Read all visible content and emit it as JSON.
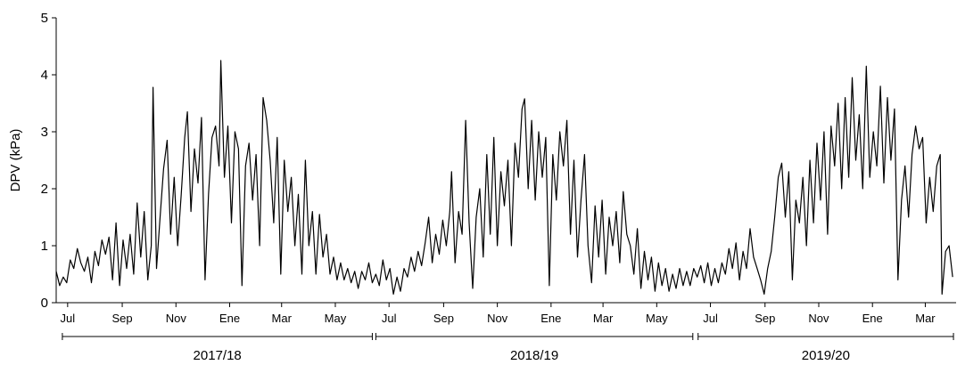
{
  "chart_data": {
    "type": "line",
    "ylabel": "DPV (kPa)",
    "ylim": [
      0,
      5
    ],
    "yticks": [
      0,
      1,
      2,
      3,
      4,
      5
    ],
    "xlim": [
      "2017-06-18",
      "2020-04-05"
    ],
    "grid": false,
    "months": [
      {
        "label": "Jul",
        "date": "2017-07-01"
      },
      {
        "label": "Sep",
        "date": "2017-09-01"
      },
      {
        "label": "Nov",
        "date": "2017-11-01"
      },
      {
        "label": "Ene",
        "date": "2018-01-01"
      },
      {
        "label": "Mar",
        "date": "2018-03-01"
      },
      {
        "label": "May",
        "date": "2018-05-01"
      },
      {
        "label": "Jul",
        "date": "2018-07-01"
      },
      {
        "label": "Sep",
        "date": "2018-09-01"
      },
      {
        "label": "Nov",
        "date": "2018-11-01"
      },
      {
        "label": "Ene",
        "date": "2019-01-01"
      },
      {
        "label": "Mar",
        "date": "2019-03-01"
      },
      {
        "label": "May",
        "date": "2019-05-01"
      },
      {
        "label": "Jul",
        "date": "2019-07-01"
      },
      {
        "label": "Sep",
        "date": "2019-09-01"
      },
      {
        "label": "Nov",
        "date": "2019-11-01"
      },
      {
        "label": "Ene",
        "date": "2020-01-01"
      },
      {
        "label": "Mar",
        "date": "2020-03-01"
      }
    ],
    "seasons": [
      {
        "label": "2017/18",
        "start": "2017-06-25",
        "end": "2018-06-12"
      },
      {
        "label": "2018/19",
        "start": "2018-06-16",
        "end": "2019-06-11"
      },
      {
        "label": "2019/20",
        "start": "2019-06-17",
        "end": "2020-04-02"
      }
    ],
    "series": [
      {
        "points": [
          [
            "2017-06-18",
            0.55
          ],
          [
            "2017-06-22",
            0.3
          ],
          [
            "2017-06-26",
            0.45
          ],
          [
            "2017-06-30",
            0.35
          ],
          [
            "2017-07-04",
            0.75
          ],
          [
            "2017-07-08",
            0.6
          ],
          [
            "2017-07-12",
            0.95
          ],
          [
            "2017-07-16",
            0.7
          ],
          [
            "2017-07-20",
            0.55
          ],
          [
            "2017-07-24",
            0.8
          ],
          [
            "2017-07-28",
            0.35
          ],
          [
            "2017-08-01",
            0.9
          ],
          [
            "2017-08-05",
            0.65
          ],
          [
            "2017-08-09",
            1.1
          ],
          [
            "2017-08-13",
            0.85
          ],
          [
            "2017-08-17",
            1.15
          ],
          [
            "2017-08-21",
            0.4
          ],
          [
            "2017-08-25",
            1.4
          ],
          [
            "2017-08-29",
            0.3
          ],
          [
            "2017-09-02",
            1.1
          ],
          [
            "2017-09-06",
            0.6
          ],
          [
            "2017-09-10",
            1.2
          ],
          [
            "2017-09-14",
            0.5
          ],
          [
            "2017-09-18",
            1.75
          ],
          [
            "2017-09-22",
            0.8
          ],
          [
            "2017-09-26",
            1.6
          ],
          [
            "2017-09-30",
            0.4
          ],
          [
            "2017-10-04",
            1.0
          ],
          [
            "2017-10-06",
            3.78
          ],
          [
            "2017-10-10",
            0.6
          ],
          [
            "2017-10-14",
            1.5
          ],
          [
            "2017-10-18",
            2.35
          ],
          [
            "2017-10-22",
            2.85
          ],
          [
            "2017-10-26",
            1.2
          ],
          [
            "2017-10-30",
            2.2
          ],
          [
            "2017-11-03",
            1.0
          ],
          [
            "2017-11-07",
            1.9
          ],
          [
            "2017-11-11",
            2.9
          ],
          [
            "2017-11-14",
            3.35
          ],
          [
            "2017-11-18",
            1.6
          ],
          [
            "2017-11-22",
            2.7
          ],
          [
            "2017-11-26",
            2.1
          ],
          [
            "2017-11-30",
            3.25
          ],
          [
            "2017-12-04",
            0.4
          ],
          [
            "2017-12-08",
            1.9
          ],
          [
            "2017-12-12",
            2.9
          ],
          [
            "2017-12-16",
            3.1
          ],
          [
            "2017-12-20",
            2.4
          ],
          [
            "2017-12-22",
            4.25
          ],
          [
            "2017-12-26",
            2.2
          ],
          [
            "2017-12-30",
            3.1
          ],
          [
            "2018-01-03",
            1.4
          ],
          [
            "2018-01-07",
            3.0
          ],
          [
            "2018-01-11",
            2.7
          ],
          [
            "2018-01-15",
            0.3
          ],
          [
            "2018-01-19",
            2.4
          ],
          [
            "2018-01-23",
            2.8
          ],
          [
            "2018-01-27",
            1.8
          ],
          [
            "2018-01-31",
            2.6
          ],
          [
            "2018-02-04",
            1.0
          ],
          [
            "2018-02-08",
            3.6
          ],
          [
            "2018-02-12",
            3.2
          ],
          [
            "2018-02-16",
            2.5
          ],
          [
            "2018-02-20",
            1.4
          ],
          [
            "2018-02-24",
            2.9
          ],
          [
            "2018-02-28",
            0.5
          ],
          [
            "2018-03-04",
            2.5
          ],
          [
            "2018-03-08",
            1.6
          ],
          [
            "2018-03-12",
            2.2
          ],
          [
            "2018-03-16",
            1.0
          ],
          [
            "2018-03-20",
            1.9
          ],
          [
            "2018-03-24",
            0.5
          ],
          [
            "2018-03-28",
            2.5
          ],
          [
            "2018-04-01",
            1.0
          ],
          [
            "2018-04-05",
            1.6
          ],
          [
            "2018-04-09",
            0.5
          ],
          [
            "2018-04-13",
            1.55
          ],
          [
            "2018-04-17",
            0.8
          ],
          [
            "2018-04-21",
            1.2
          ],
          [
            "2018-04-25",
            0.5
          ],
          [
            "2018-04-29",
            0.8
          ],
          [
            "2018-05-03",
            0.4
          ],
          [
            "2018-05-07",
            0.7
          ],
          [
            "2018-05-11",
            0.4
          ],
          [
            "2018-05-15",
            0.6
          ],
          [
            "2018-05-19",
            0.35
          ],
          [
            "2018-05-23",
            0.55
          ],
          [
            "2018-05-27",
            0.25
          ],
          [
            "2018-05-31",
            0.55
          ],
          [
            "2018-06-04",
            0.4
          ],
          [
            "2018-06-08",
            0.7
          ],
          [
            "2018-06-12",
            0.35
          ],
          [
            "2018-06-16",
            0.5
          ],
          [
            "2018-06-20",
            0.3
          ],
          [
            "2018-06-24",
            0.75
          ],
          [
            "2018-06-28",
            0.4
          ],
          [
            "2018-07-02",
            0.6
          ],
          [
            "2018-07-06",
            0.15
          ],
          [
            "2018-07-10",
            0.45
          ],
          [
            "2018-07-14",
            0.2
          ],
          [
            "2018-07-18",
            0.6
          ],
          [
            "2018-07-22",
            0.45
          ],
          [
            "2018-07-26",
            0.8
          ],
          [
            "2018-07-30",
            0.55
          ],
          [
            "2018-08-03",
            0.9
          ],
          [
            "2018-08-07",
            0.65
          ],
          [
            "2018-08-11",
            1.05
          ],
          [
            "2018-08-15",
            1.5
          ],
          [
            "2018-08-19",
            0.7
          ],
          [
            "2018-08-23",
            1.2
          ],
          [
            "2018-08-27",
            0.85
          ],
          [
            "2018-08-31",
            1.45
          ],
          [
            "2018-09-04",
            1.0
          ],
          [
            "2018-09-08",
            1.6
          ],
          [
            "2018-09-10",
            2.3
          ],
          [
            "2018-09-14",
            0.7
          ],
          [
            "2018-09-18",
            1.6
          ],
          [
            "2018-09-22",
            1.2
          ],
          [
            "2018-09-26",
            3.2
          ],
          [
            "2018-09-30",
            1.4
          ],
          [
            "2018-10-04",
            0.25
          ],
          [
            "2018-10-08",
            1.5
          ],
          [
            "2018-10-12",
            2.0
          ],
          [
            "2018-10-16",
            0.8
          ],
          [
            "2018-10-20",
            2.6
          ],
          [
            "2018-10-24",
            1.2
          ],
          [
            "2018-10-28",
            2.9
          ],
          [
            "2018-11-01",
            1.0
          ],
          [
            "2018-11-05",
            2.3
          ],
          [
            "2018-11-09",
            1.7
          ],
          [
            "2018-11-13",
            2.5
          ],
          [
            "2018-11-17",
            1.0
          ],
          [
            "2018-11-21",
            2.8
          ],
          [
            "2018-11-25",
            2.2
          ],
          [
            "2018-11-29",
            3.4
          ],
          [
            "2018-12-02",
            3.58
          ],
          [
            "2018-12-06",
            2.0
          ],
          [
            "2018-12-10",
            3.2
          ],
          [
            "2018-12-14",
            1.8
          ],
          [
            "2018-12-18",
            3.0
          ],
          [
            "2018-12-22",
            2.2
          ],
          [
            "2018-12-26",
            2.9
          ],
          [
            "2018-12-30",
            0.3
          ],
          [
            "2019-01-03",
            2.6
          ],
          [
            "2019-01-07",
            1.8
          ],
          [
            "2019-01-11",
            3.0
          ],
          [
            "2019-01-15",
            2.4
          ],
          [
            "2019-01-19",
            3.2
          ],
          [
            "2019-01-23",
            1.2
          ],
          [
            "2019-01-27",
            2.5
          ],
          [
            "2019-01-31",
            0.8
          ],
          [
            "2019-02-04",
            1.8
          ],
          [
            "2019-02-08",
            2.6
          ],
          [
            "2019-02-12",
            1.0
          ],
          [
            "2019-02-16",
            0.35
          ],
          [
            "2019-02-20",
            1.7
          ],
          [
            "2019-02-24",
            0.8
          ],
          [
            "2019-02-28",
            1.8
          ],
          [
            "2019-03-04",
            0.5
          ],
          [
            "2019-03-08",
            1.5
          ],
          [
            "2019-03-12",
            1.0
          ],
          [
            "2019-03-16",
            1.6
          ],
          [
            "2019-03-20",
            0.7
          ],
          [
            "2019-03-24",
            1.95
          ],
          [
            "2019-03-28",
            1.2
          ],
          [
            "2019-04-01",
            1.0
          ],
          [
            "2019-04-05",
            0.5
          ],
          [
            "2019-04-09",
            1.3
          ],
          [
            "2019-04-13",
            0.25
          ],
          [
            "2019-04-17",
            0.9
          ],
          [
            "2019-04-21",
            0.4
          ],
          [
            "2019-04-25",
            0.8
          ],
          [
            "2019-04-29",
            0.2
          ],
          [
            "2019-05-03",
            0.7
          ],
          [
            "2019-05-07",
            0.3
          ],
          [
            "2019-05-11",
            0.6
          ],
          [
            "2019-05-15",
            0.2
          ],
          [
            "2019-05-19",
            0.5
          ],
          [
            "2019-05-23",
            0.25
          ],
          [
            "2019-05-27",
            0.6
          ],
          [
            "2019-05-31",
            0.3
          ],
          [
            "2019-06-04",
            0.55
          ],
          [
            "2019-06-08",
            0.3
          ],
          [
            "2019-06-12",
            0.6
          ],
          [
            "2019-06-16",
            0.45
          ],
          [
            "2019-06-20",
            0.65
          ],
          [
            "2019-06-24",
            0.35
          ],
          [
            "2019-06-28",
            0.7
          ],
          [
            "2019-07-02",
            0.3
          ],
          [
            "2019-07-06",
            0.6
          ],
          [
            "2019-07-10",
            0.35
          ],
          [
            "2019-07-14",
            0.7
          ],
          [
            "2019-07-18",
            0.5
          ],
          [
            "2019-07-22",
            0.95
          ],
          [
            "2019-07-26",
            0.6
          ],
          [
            "2019-07-30",
            1.05
          ],
          [
            "2019-08-03",
            0.4
          ],
          [
            "2019-08-07",
            0.9
          ],
          [
            "2019-08-11",
            0.6
          ],
          [
            "2019-08-15",
            1.3
          ],
          [
            "2019-08-19",
            0.8
          ],
          [
            "2019-08-23",
            0.6
          ],
          [
            "2019-08-27",
            0.4
          ],
          [
            "2019-08-31",
            0.15
          ],
          [
            "2019-09-04",
            0.6
          ],
          [
            "2019-09-08",
            0.9
          ],
          [
            "2019-09-12",
            1.5
          ],
          [
            "2019-09-16",
            2.2
          ],
          [
            "2019-09-20",
            2.45
          ],
          [
            "2019-09-24",
            1.5
          ],
          [
            "2019-09-28",
            2.3
          ],
          [
            "2019-10-02",
            0.4
          ],
          [
            "2019-10-06",
            1.8
          ],
          [
            "2019-10-10",
            1.4
          ],
          [
            "2019-10-14",
            2.2
          ],
          [
            "2019-10-18",
            1.0
          ],
          [
            "2019-10-22",
            2.5
          ],
          [
            "2019-10-26",
            1.4
          ],
          [
            "2019-10-30",
            2.8
          ],
          [
            "2019-11-03",
            1.8
          ],
          [
            "2019-11-07",
            3.0
          ],
          [
            "2019-11-11",
            1.2
          ],
          [
            "2019-11-15",
            3.1
          ],
          [
            "2019-11-19",
            2.4
          ],
          [
            "2019-11-23",
            3.5
          ],
          [
            "2019-11-27",
            2.0
          ],
          [
            "2019-12-01",
            3.6
          ],
          [
            "2019-12-05",
            2.2
          ],
          [
            "2019-12-09",
            3.95
          ],
          [
            "2019-12-13",
            2.5
          ],
          [
            "2019-12-17",
            3.3
          ],
          [
            "2019-12-21",
            2.0
          ],
          [
            "2019-12-25",
            4.15
          ],
          [
            "2019-12-29",
            2.2
          ],
          [
            "2020-01-02",
            3.0
          ],
          [
            "2020-01-06",
            2.4
          ],
          [
            "2020-01-10",
            3.8
          ],
          [
            "2020-01-14",
            2.1
          ],
          [
            "2020-01-18",
            3.6
          ],
          [
            "2020-01-22",
            2.5
          ],
          [
            "2020-01-26",
            3.4
          ],
          [
            "2020-01-30",
            0.4
          ],
          [
            "2020-02-03",
            1.8
          ],
          [
            "2020-02-07",
            2.4
          ],
          [
            "2020-02-11",
            1.5
          ],
          [
            "2020-02-15",
            2.6
          ],
          [
            "2020-02-19",
            3.1
          ],
          [
            "2020-02-23",
            2.7
          ],
          [
            "2020-02-27",
            2.9
          ],
          [
            "2020-03-02",
            1.4
          ],
          [
            "2020-03-06",
            2.2
          ],
          [
            "2020-03-10",
            1.6
          ],
          [
            "2020-03-14",
            2.4
          ],
          [
            "2020-03-18",
            2.6
          ],
          [
            "2020-03-20",
            0.15
          ],
          [
            "2020-03-24",
            0.9
          ],
          [
            "2020-03-28",
            1.0
          ],
          [
            "2020-04-01",
            0.45
          ]
        ]
      }
    ]
  }
}
